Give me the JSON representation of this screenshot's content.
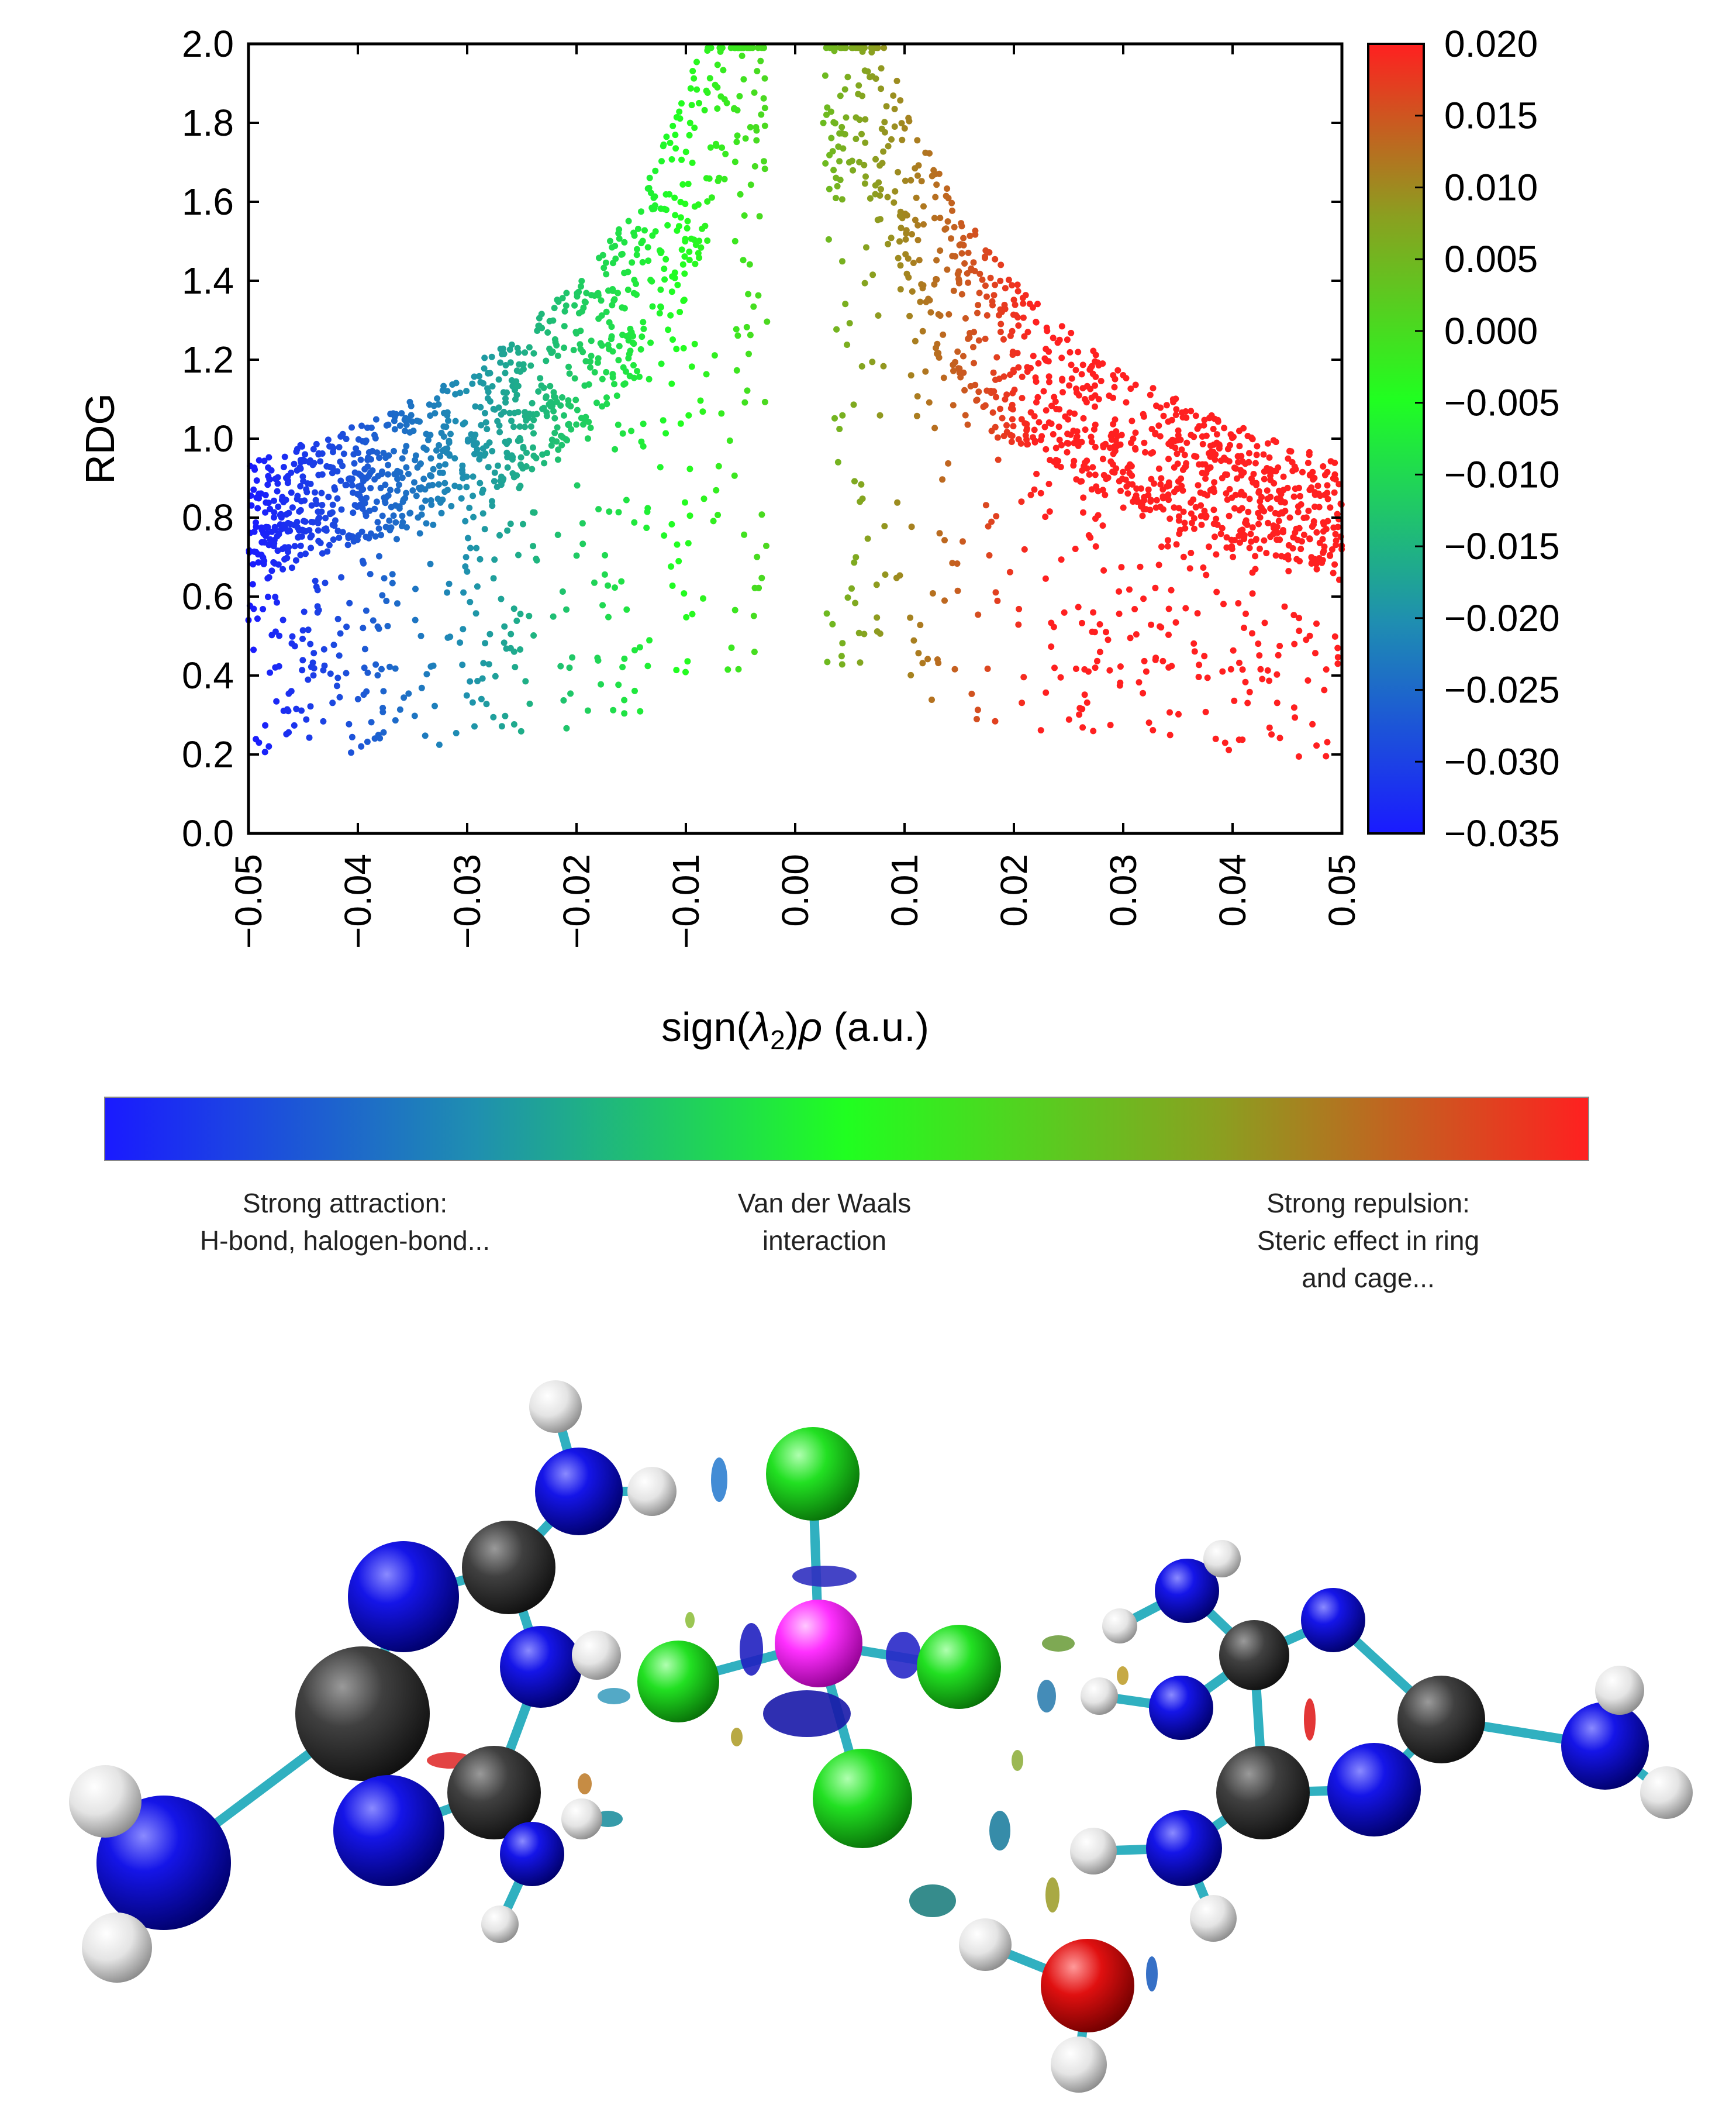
{
  "chart_data": {
    "type": "scatter",
    "xlabel": "sign(λ2)ρ (a.u.)",
    "ylabel": "RDG",
    "xlim": [
      -0.05,
      0.05
    ],
    "ylim": [
      0.0,
      2.0
    ],
    "xticks": [
      "−0.05",
      "−0.04",
      "−0.03",
      "−0.02",
      "−0.01",
      "0.00",
      "0.01",
      "0.02",
      "0.03",
      "0.04",
      "0.05"
    ],
    "yticks": [
      "0.0",
      "0.2",
      "0.4",
      "0.6",
      "0.8",
      "1.0",
      "1.2",
      "1.4",
      "1.6",
      "1.8",
      "2.0"
    ],
    "colorbar": {
      "range": [
        -0.035,
        0.02
      ],
      "ticks": [
        "0.020",
        "0.015",
        "0.010",
        "0.005",
        "0.000",
        "−0.005",
        "−0.010",
        "−0.015",
        "−0.020",
        "−0.025",
        "−0.030",
        "−0.035"
      ],
      "colors": [
        "#1a1aff",
        "#1f8fb0",
        "#20ff20",
        "#8aa020",
        "#ff2020"
      ]
    },
    "branches": [
      {
        "sign": -1,
        "shape": "rdg≈ k·|x|^(-1/3) envelope from x=-0.05 to x=-0.002",
        "y_at_x": [
          [
            -0.05,
            1.0
          ],
          [
            -0.04,
            1.05
          ],
          [
            -0.03,
            1.15
          ],
          [
            -0.02,
            1.3
          ],
          [
            -0.01,
            1.6
          ],
          [
            -0.005,
            2.0
          ]
        ]
      },
      {
        "sign": 1,
        "shape": "envelope from x=0.002 to x=0.05",
        "y_at_x": [
          [
            0.005,
            2.0
          ],
          [
            0.01,
            1.6
          ],
          [
            0.02,
            1.3
          ],
          [
            0.03,
            1.1
          ],
          [
            0.04,
            0.95
          ],
          [
            0.05,
            0.85
          ]
        ]
      }
    ],
    "grid": false,
    "legend": "none"
  },
  "legend_bar": {
    "colors": [
      "#1a1aff",
      "#1f8fb0",
      "#20ff20",
      "#8aa020",
      "#ff2020"
    ],
    "labels": {
      "left": "Strong attraction:\nH-bond, halogen-bond...",
      "center": "Van der Waals\ninteraction",
      "right": "Strong repulsion:\nSteric effect in ring\nand cage..."
    }
  },
  "molecule": {
    "atom_colors": {
      "N": "#1010e0",
      "C": "#3a3a3a",
      "H": "#e6e6e6",
      "Cl": "#22dd22",
      "metal": "#ff30ff",
      "O": "#e01010"
    },
    "bond_color": "#30b0c0"
  }
}
